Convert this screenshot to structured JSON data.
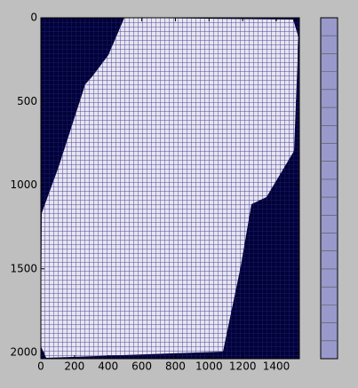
{
  "chart_data": {
    "type": "image",
    "xlim": [
      0,
      1537
    ],
    "ylim": [
      2037,
      0
    ],
    "xticks": [
      0,
      200,
      400,
      600,
      800,
      1000,
      1200,
      1400
    ],
    "yticks": [
      0,
      500,
      1000,
      1500,
      2000
    ],
    "colorbar_color": "#9999cc"
  }
}
